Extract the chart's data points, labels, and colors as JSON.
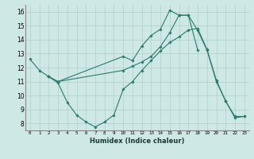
{
  "xlabel": "Humidex (Indice chaleur)",
  "ylabel": "",
  "background_color": "#cde8e5",
  "grid_color": "#afd0cd",
  "line_color": "#2d7a6e",
  "xlim": [
    -0.5,
    23.5
  ],
  "ylim": [
    7.5,
    16.5
  ],
  "xticks": [
    0,
    1,
    2,
    3,
    4,
    5,
    6,
    7,
    8,
    9,
    10,
    11,
    12,
    13,
    14,
    15,
    16,
    17,
    18,
    19,
    20,
    21,
    22,
    23
  ],
  "yticks": [
    8,
    9,
    10,
    11,
    12,
    13,
    14,
    15,
    16
  ],
  "series": [
    {
      "x": [
        0,
        1,
        2,
        3,
        4,
        5,
        6,
        7,
        8,
        9,
        10,
        11,
        12,
        13,
        14,
        15,
        16,
        17,
        18,
        19,
        20,
        21,
        22,
        23
      ],
      "y": [
        12.6,
        11.8,
        11.35,
        10.9,
        9.5,
        8.6,
        8.1,
        7.75,
        8.1,
        8.6,
        10.45,
        11.0,
        11.8,
        12.5,
        13.2,
        13.8,
        14.2,
        14.7,
        14.8,
        13.3,
        11.1,
        9.6,
        8.4,
        8.5
      ]
    },
    {
      "x": [
        2,
        3,
        10,
        11,
        12,
        13,
        14,
        15,
        16,
        17,
        18,
        19,
        20,
        21,
        22,
        23
      ],
      "y": [
        11.35,
        11.0,
        12.8,
        12.5,
        13.55,
        14.3,
        14.75,
        16.1,
        15.75,
        15.75,
        14.65,
        13.25,
        11.0,
        9.6,
        8.5,
        8.5
      ]
    },
    {
      "x": [
        2,
        3,
        10,
        11,
        12,
        13,
        14,
        15,
        16,
        17,
        18
      ],
      "y": [
        11.35,
        11.0,
        11.8,
        12.1,
        12.4,
        12.8,
        13.5,
        14.5,
        15.75,
        15.75,
        13.25
      ]
    }
  ]
}
